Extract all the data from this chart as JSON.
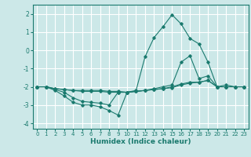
{
  "xlabel": "Humidex (Indice chaleur)",
  "background_color": "#cce8e8",
  "grid_color": "#ffffff",
  "line_color": "#1a7a6e",
  "xlim": [
    -0.5,
    23.5
  ],
  "ylim": [
    -4.3,
    2.5
  ],
  "yticks": [
    -4,
    -3,
    -2,
    -1,
    0,
    1,
    2
  ],
  "xticks": [
    0,
    1,
    2,
    3,
    4,
    5,
    6,
    7,
    8,
    9,
    10,
    11,
    12,
    13,
    14,
    15,
    16,
    17,
    18,
    19,
    20,
    21,
    22,
    23
  ],
  "series": [
    {
      "x": [
        0,
        1,
        2,
        3,
        4,
        5,
        6,
        7,
        8,
        9,
        10,
        11,
        12,
        13,
        14,
        15,
        16,
        17,
        18,
        19,
        20,
        21,
        22,
        23
      ],
      "y": [
        -2.0,
        -2.0,
        -2.2,
        -2.5,
        -2.85,
        -3.0,
        -3.0,
        -3.1,
        -3.3,
        -3.55,
        -2.3,
        -2.2,
        -0.35,
        0.7,
        1.3,
        1.95,
        1.45,
        0.65,
        0.35,
        -0.65,
        -2.0,
        -1.9,
        -2.0,
        -2.0
      ]
    },
    {
      "x": [
        0,
        1,
        2,
        3,
        4,
        5,
        6,
        7,
        8,
        9,
        10,
        11,
        12,
        13,
        14,
        15,
        16,
        17,
        18,
        19,
        20,
        21,
        22,
        23
      ],
      "y": [
        -2.0,
        -2.0,
        -2.15,
        -2.3,
        -2.6,
        -2.8,
        -2.85,
        -2.9,
        -3.0,
        -2.3,
        -2.3,
        -2.25,
        -2.2,
        -2.1,
        -2.0,
        -1.9,
        -0.65,
        -0.3,
        -1.55,
        -1.4,
        -2.0,
        -2.0,
        -2.0,
        -2.0
      ]
    },
    {
      "x": [
        0,
        1,
        2,
        3,
        4,
        5,
        6,
        7,
        8,
        9,
        10,
        11,
        12,
        13,
        14,
        15,
        16,
        17,
        18,
        19,
        20,
        21,
        22,
        23
      ],
      "y": [
        -2.0,
        -2.0,
        -2.1,
        -2.15,
        -2.2,
        -2.2,
        -2.2,
        -2.2,
        -2.25,
        -2.25,
        -2.3,
        -2.25,
        -2.2,
        -2.15,
        -2.1,
        -2.05,
        -1.9,
        -1.8,
        -1.75,
        -1.65,
        -2.0,
        -2.0,
        -2.0,
        -2.0
      ]
    },
    {
      "x": [
        0,
        1,
        2,
        3,
        4,
        5,
        6,
        7,
        8,
        9,
        10,
        11,
        12,
        13,
        14,
        15,
        16,
        17,
        18,
        19,
        20,
        21,
        22,
        23
      ],
      "y": [
        -2.0,
        -2.0,
        -2.1,
        -2.15,
        -2.2,
        -2.25,
        -2.25,
        -2.25,
        -2.3,
        -2.3,
        -2.3,
        -2.25,
        -2.2,
        -2.15,
        -2.1,
        -2.0,
        -1.85,
        -1.75,
        -1.75,
        -1.65,
        -2.0,
        -2.0,
        -2.0,
        -2.0
      ]
    }
  ]
}
